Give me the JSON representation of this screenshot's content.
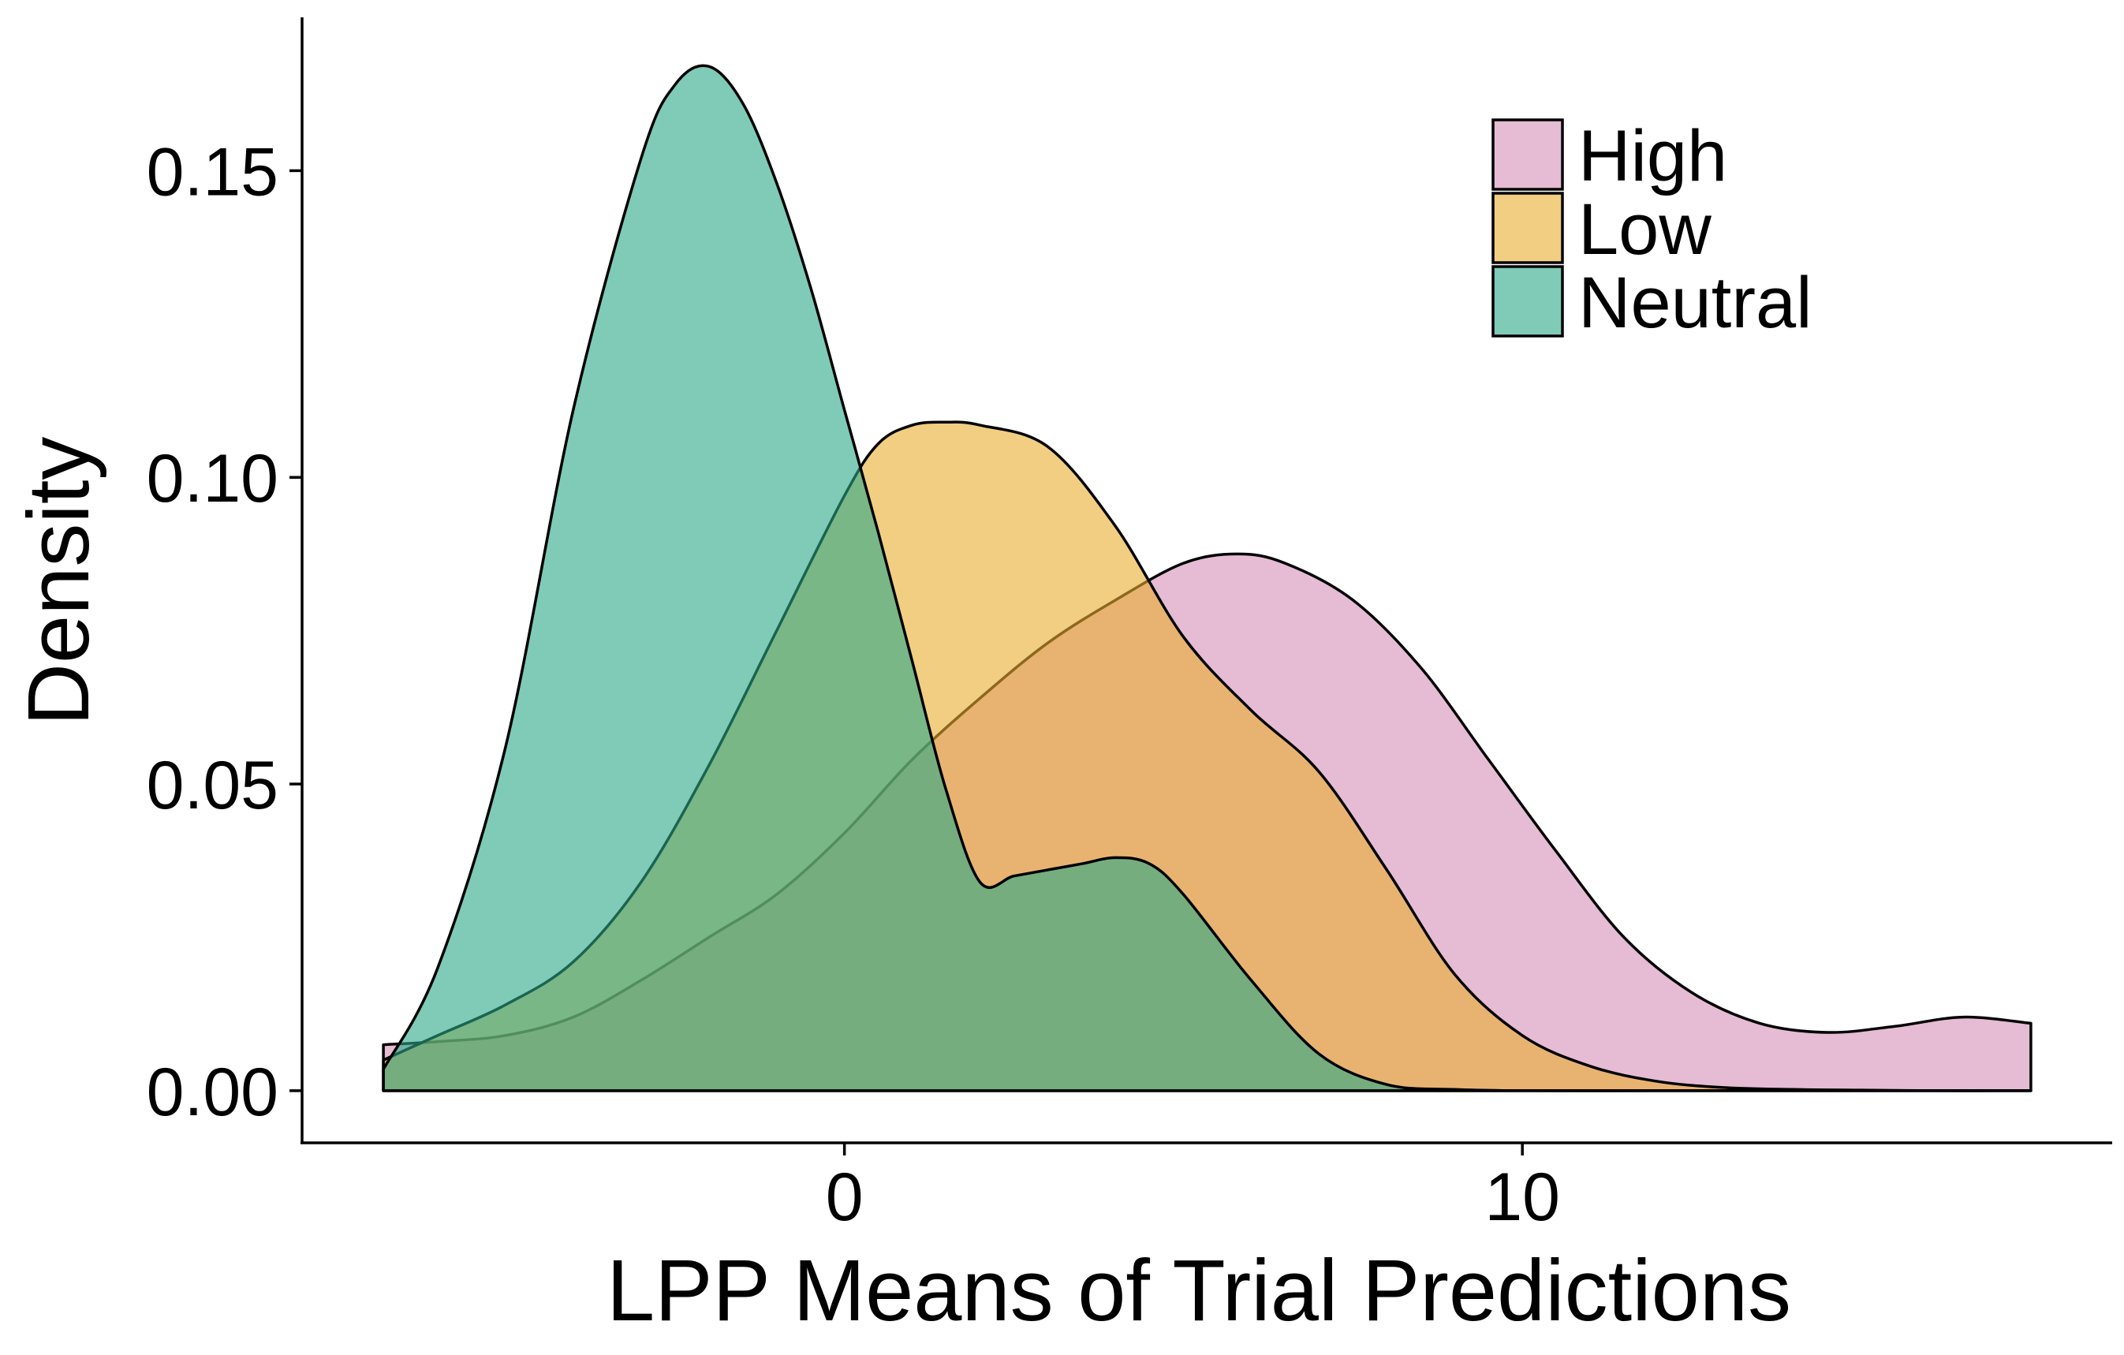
{
  "chart_data": {
    "type": "area",
    "subtype": "density",
    "title": "",
    "xlabel": "LPP Means of Trial Predictions",
    "ylabel": "Density",
    "xlim": [
      -8,
      18.7
    ],
    "ylim": [
      -0.0085,
      0.175
    ],
    "x_ticks": [
      0,
      10
    ],
    "x_tick_labels": [
      "0",
      "10"
    ],
    "y_ticks": [
      0,
      0.05,
      0.1,
      0.15
    ],
    "y_tick_labels": [
      "0.00",
      "0.05",
      "0.10",
      "0.15"
    ],
    "grid": false,
    "legend_position": "top-right",
    "opacity": 0.6,
    "series": [
      {
        "name": "High",
        "color": "#d48fb8",
        "x": [
          -6.8,
          -6.0,
          -5.0,
          -4.0,
          -3.0,
          -2.0,
          -1.0,
          0.0,
          1.0,
          2.0,
          3.0,
          4.0,
          5.0,
          5.8,
          6.5,
          7.5,
          8.5,
          9.5,
          10.5,
          11.5,
          12.5,
          13.5,
          14.5,
          15.5,
          16.5,
          17.5
        ],
        "y": [
          0.0075,
          0.008,
          0.009,
          0.012,
          0.018,
          0.025,
          0.032,
          0.042,
          0.054,
          0.064,
          0.073,
          0.08,
          0.086,
          0.0875,
          0.086,
          0.08,
          0.069,
          0.054,
          0.039,
          0.025,
          0.016,
          0.011,
          0.0095,
          0.0105,
          0.012,
          0.011
        ]
      },
      {
        "name": "Low",
        "color": "#e9ae2e",
        "x": [
          -6.8,
          -6.0,
          -5.0,
          -4.0,
          -3.0,
          -2.0,
          -1.0,
          0.0,
          0.5,
          1.0,
          1.5,
          2.0,
          3.0,
          4.0,
          5.0,
          6.0,
          7.0,
          8.0,
          9.0,
          10.0,
          11.0,
          12.0,
          13.0,
          14.0,
          15.0,
          16.0,
          17.5
        ],
        "y": [
          0.005,
          0.009,
          0.014,
          0.021,
          0.034,
          0.053,
          0.075,
          0.097,
          0.1055,
          0.1085,
          0.109,
          0.1085,
          0.105,
          0.092,
          0.074,
          0.062,
          0.052,
          0.036,
          0.019,
          0.009,
          0.004,
          0.0015,
          0.0005,
          0.0002,
          0.0001,
          0.0,
          0.0
        ]
      },
      {
        "name": "Neutral",
        "color": "#2aa889",
        "x": [
          -6.8,
          -6.0,
          -5.0,
          -4.0,
          -3.0,
          -2.5,
          -2.0,
          -1.5,
          -1.0,
          -0.5,
          0.0,
          0.5,
          1.0,
          1.5,
          2.0,
          2.5,
          3.0,
          3.5,
          4.0,
          4.5,
          5.0,
          6.0,
          7.0,
          8.0,
          9.0,
          10.0,
          12.0,
          14.0,
          17.5
        ],
        "y": [
          0.0035,
          0.02,
          0.056,
          0.111,
          0.152,
          0.164,
          0.167,
          0.161,
          0.148,
          0.131,
          0.111,
          0.091,
          0.07,
          0.049,
          0.034,
          0.035,
          0.036,
          0.037,
          0.038,
          0.037,
          0.032,
          0.018,
          0.006,
          0.001,
          0.0002,
          0.0,
          0.0,
          0.0,
          0.0
        ]
      }
    ]
  }
}
